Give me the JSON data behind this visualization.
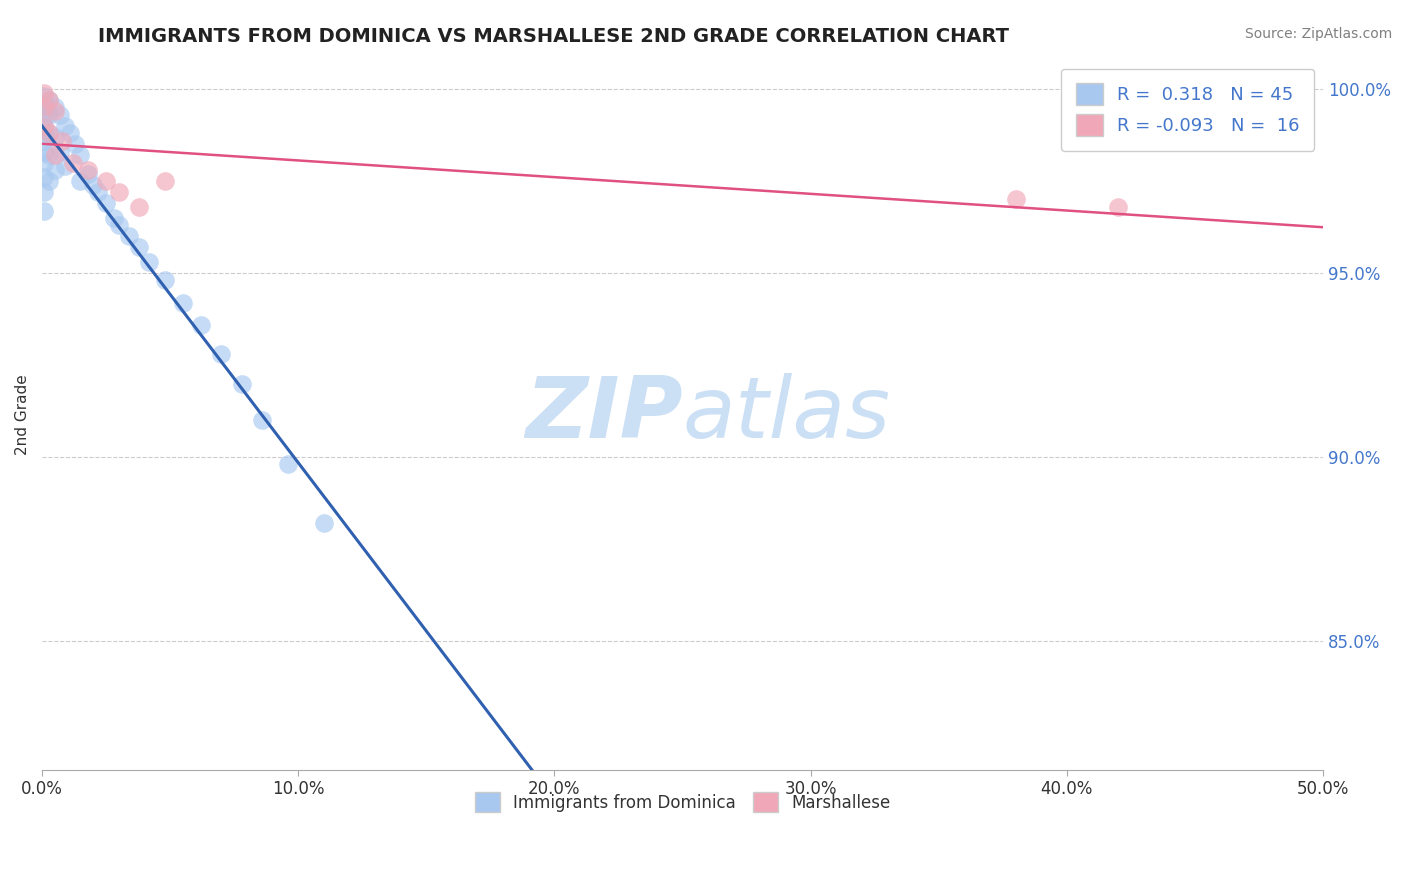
{
  "title": "IMMIGRANTS FROM DOMINICA VS MARSHALLESE 2ND GRADE CORRELATION CHART",
  "source_text": "Source: ZipAtlas.com",
  "ylabel": "2nd Grade",
  "xlim": [
    0.0,
    0.5
  ],
  "ylim": [
    0.815,
    1.008
  ],
  "xtick_labels": [
    "0.0%",
    "10.0%",
    "20.0%",
    "30.0%",
    "40.0%",
    "50.0%"
  ],
  "xtick_values": [
    0.0,
    0.1,
    0.2,
    0.3,
    0.4,
    0.5
  ],
  "ytick_labels": [
    "85.0%",
    "90.0%",
    "95.0%",
    "100.0%"
  ],
  "ytick_values": [
    0.85,
    0.9,
    0.95,
    1.0
  ],
  "R_blue": 0.318,
  "N_blue": 45,
  "R_pink": -0.093,
  "N_pink": 16,
  "blue_color": "#a8c8f0",
  "pink_color": "#f0a8b8",
  "blue_line_color": "#3060b0",
  "pink_line_color": "#e05080",
  "watermark_color": "#cce0f5",
  "legend_label_color": "#4477cc",
  "ytick_color": "#4477cc",
  "blue_scatter_x": [
    0.001,
    0.001,
    0.001,
    0.001,
    0.001,
    0.001,
    0.001,
    0.001,
    0.001,
    0.001,
    0.001,
    0.001,
    0.003,
    0.003,
    0.003,
    0.003,
    0.003,
    0.005,
    0.005,
    0.005,
    0.007,
    0.007,
    0.009,
    0.009,
    0.011,
    0.013,
    0.015,
    0.015,
    0.018,
    0.02,
    0.022,
    0.025,
    0.028,
    0.03,
    0.034,
    0.038,
    0.042,
    0.048,
    0.055,
    0.062,
    0.07,
    0.078,
    0.086,
    0.096,
    0.11
  ],
  "blue_scatter_y": [
    0.998,
    0.996,
    0.994,
    0.992,
    0.99,
    0.988,
    0.986,
    0.983,
    0.98,
    0.976,
    0.972,
    0.967,
    0.997,
    0.993,
    0.988,
    0.982,
    0.975,
    0.995,
    0.987,
    0.978,
    0.993,
    0.983,
    0.99,
    0.979,
    0.988,
    0.985,
    0.982,
    0.975,
    0.977,
    0.974,
    0.972,
    0.969,
    0.965,
    0.963,
    0.96,
    0.957,
    0.953,
    0.948,
    0.942,
    0.936,
    0.928,
    0.92,
    0.91,
    0.898,
    0.882
  ],
  "pink_scatter_x": [
    0.001,
    0.001,
    0.001,
    0.003,
    0.003,
    0.005,
    0.005,
    0.008,
    0.012,
    0.018,
    0.025,
    0.03,
    0.038,
    0.048,
    0.38,
    0.42
  ],
  "pink_scatter_y": [
    0.999,
    0.995,
    0.99,
    0.997,
    0.988,
    0.994,
    0.982,
    0.986,
    0.98,
    0.978,
    0.975,
    0.972,
    0.968,
    0.975,
    0.97,
    0.968
  ]
}
